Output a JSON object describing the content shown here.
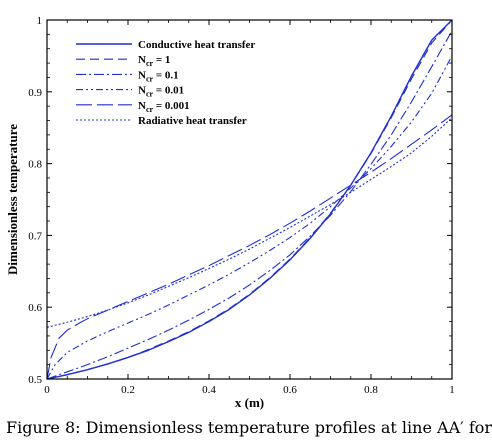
{
  "chart_data": {
    "type": "line",
    "xlabel": "x (m)",
    "ylabel": "Dimensionless temperature",
    "xlim": [
      0,
      1
    ],
    "ylim": [
      0.5,
      1
    ],
    "xticks": [
      "0",
      "0.2",
      "0.4",
      "0.6",
      "0.8",
      "1"
    ],
    "yticks": [
      "0.5",
      "0.6",
      "0.7",
      "0.8",
      "0.9",
      "1"
    ],
    "grid": false,
    "legend_position": "top-left",
    "series": [
      {
        "name": "Conductive heat transfer",
        "color": "#1f2fd0",
        "x": [
          0,
          0.05,
          0.1,
          0.15,
          0.2,
          0.25,
          0.3,
          0.35,
          0.4,
          0.45,
          0.5,
          0.55,
          0.6,
          0.65,
          0.7,
          0.75,
          0.8,
          0.85,
          0.9,
          0.95,
          1
        ],
        "y": [
          0.5,
          0.506,
          0.513,
          0.521,
          0.53,
          0.54,
          0.552,
          0.565,
          0.58,
          0.597,
          0.617,
          0.64,
          0.666,
          0.696,
          0.73,
          0.77,
          0.815,
          0.866,
          0.922,
          0.972,
          1.0
        ]
      },
      {
        "name": "N_cr = 1",
        "color": "#1f2fd0",
        "x": [
          0,
          0.05,
          0.1,
          0.15,
          0.2,
          0.25,
          0.3,
          0.35,
          0.4,
          0.45,
          0.5,
          0.55,
          0.6,
          0.65,
          0.7,
          0.75,
          0.8,
          0.85,
          0.9,
          0.95,
          1
        ],
        "y": [
          0.5,
          0.506,
          0.513,
          0.521,
          0.53,
          0.541,
          0.553,
          0.566,
          0.581,
          0.598,
          0.618,
          0.641,
          0.667,
          0.697,
          0.731,
          0.77,
          0.814,
          0.864,
          0.918,
          0.968,
          1.0
        ]
      },
      {
        "name": "N_cr = 0.1",
        "color": "#1f2fd0",
        "x": [
          0,
          0.05,
          0.1,
          0.15,
          0.2,
          0.25,
          0.3,
          0.35,
          0.4,
          0.45,
          0.5,
          0.55,
          0.6,
          0.65,
          0.7,
          0.75,
          0.8,
          0.85,
          0.9,
          0.95,
          1
        ],
        "y": [
          0.5,
          0.51,
          0.52,
          0.531,
          0.543,
          0.555,
          0.568,
          0.582,
          0.597,
          0.613,
          0.631,
          0.651,
          0.673,
          0.699,
          0.728,
          0.761,
          0.799,
          0.84,
          0.886,
          0.935,
          0.985
        ]
      },
      {
        "name": "N_cr = 0.01",
        "color": "#1f2fd0",
        "x": [
          0,
          0.02,
          0.05,
          0.1,
          0.15,
          0.2,
          0.25,
          0.3,
          0.35,
          0.4,
          0.45,
          0.5,
          0.55,
          0.6,
          0.65,
          0.7,
          0.75,
          0.8,
          0.85,
          0.9,
          0.95,
          1
        ],
        "y": [
          0.5,
          0.52,
          0.537,
          0.553,
          0.566,
          0.578,
          0.59,
          0.603,
          0.617,
          0.631,
          0.646,
          0.662,
          0.679,
          0.697,
          0.717,
          0.74,
          0.766,
          0.793,
          0.824,
          0.858,
          0.898,
          0.95
        ]
      },
      {
        "name": "N_cr = 0.001",
        "color": "#1f2fd0",
        "x": [
          0,
          0.01,
          0.03,
          0.05,
          0.08,
          0.1,
          0.15,
          0.2,
          0.25,
          0.3,
          0.35,
          0.4,
          0.45,
          0.5,
          0.55,
          0.6,
          0.65,
          0.7,
          0.75,
          0.8,
          0.85,
          0.9,
          0.95,
          1
        ],
        "y": [
          0.5,
          0.53,
          0.557,
          0.568,
          0.578,
          0.584,
          0.596,
          0.608,
          0.62,
          0.632,
          0.645,
          0.658,
          0.672,
          0.686,
          0.701,
          0.717,
          0.734,
          0.752,
          0.77,
          0.788,
          0.807,
          0.827,
          0.847,
          0.868
        ]
      },
      {
        "name": "Radiative heat transfer",
        "color": "#1f2fd0",
        "x": [
          0,
          0.05,
          0.1,
          0.15,
          0.2,
          0.25,
          0.3,
          0.35,
          0.4,
          0.45,
          0.5,
          0.55,
          0.6,
          0.65,
          0.7,
          0.75,
          0.8,
          0.85,
          0.9,
          0.95,
          1
        ],
        "y": [
          0.572,
          0.579,
          0.587,
          0.596,
          0.606,
          0.617,
          0.629,
          0.641,
          0.654,
          0.667,
          0.681,
          0.696,
          0.711,
          0.727,
          0.743,
          0.76,
          0.778,
          0.796,
          0.815,
          0.838,
          0.864
        ]
      }
    ],
    "legend": [
      {
        "main": "Conductive heat transfer",
        "sub": "",
        "post": ""
      },
      {
        "main": "N",
        "sub": "cr",
        "post": " = 1"
      },
      {
        "main": "N",
        "sub": "cr",
        "post": " = 0.1"
      },
      {
        "main": "N",
        "sub": "cr",
        "post": " = 0.01"
      },
      {
        "main": "N",
        "sub": "cr",
        "post": " = 0.001"
      },
      {
        "main": "Radiative heat transfer",
        "sub": "",
        "post": ""
      }
    ]
  },
  "caption": "Figure 8: Dimensionless temperature profiles at line  AA′  for"
}
